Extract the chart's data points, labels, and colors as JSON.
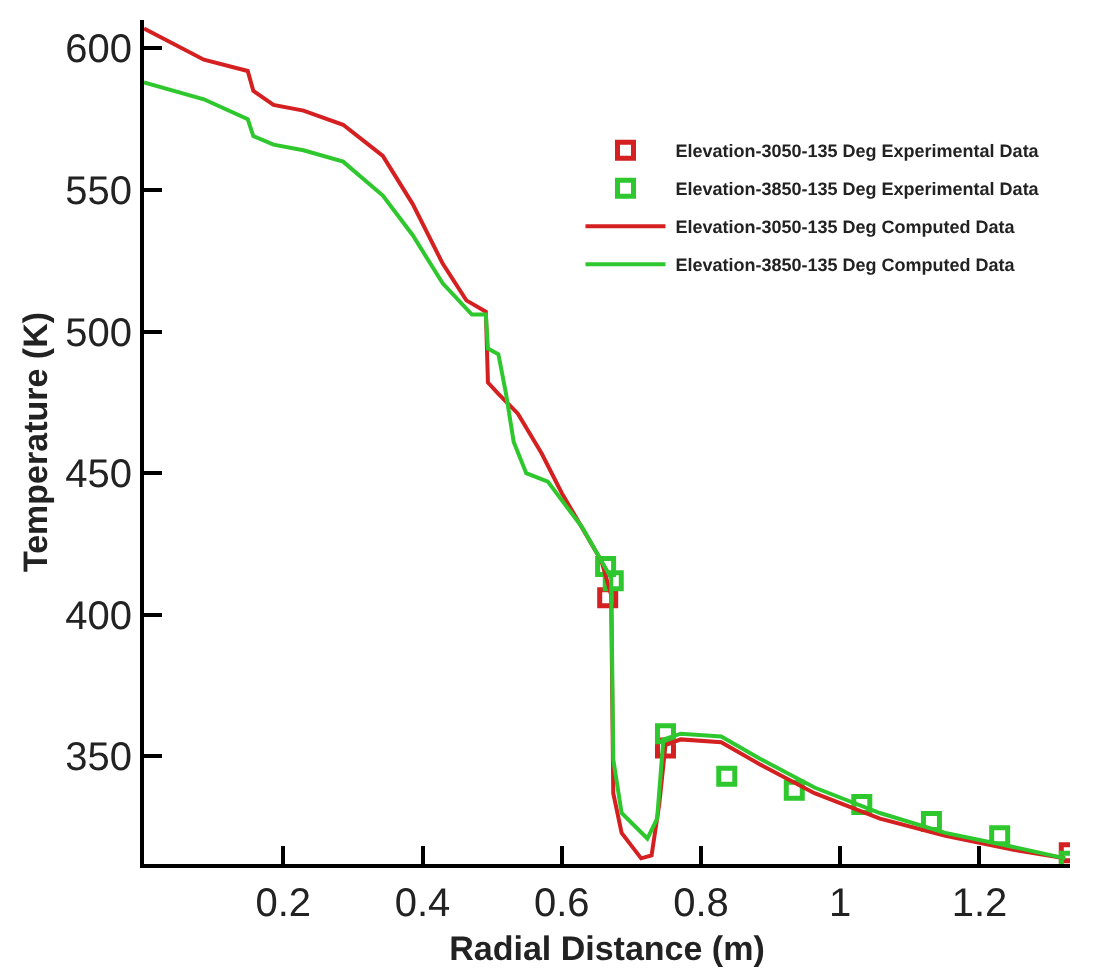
{
  "chart_data": {
    "type": "line",
    "xlabel": "Radial Distance (m)",
    "ylabel": "Temperature (K)",
    "xlim": [
      0,
      1.33
    ],
    "ylim": [
      312,
      610
    ],
    "xticks": [
      0.2,
      0.4,
      0.6,
      0.8,
      1,
      1.2
    ],
    "yticks": [
      350,
      400,
      450,
      500,
      550,
      600
    ],
    "grid": false,
    "legend": "top right",
    "line_style": "solid",
    "series": [
      {
        "name": "Elevation-3050-135 Deg Experimental Data",
        "type": "scatter",
        "marker": "square",
        "color": "#d42020",
        "x": [
          0.666,
          0.749,
          1.329
        ],
        "values": [
          406,
          353,
          316
        ]
      },
      {
        "name": "Elevation-3850-135 Deg Experimental Data",
        "type": "scatter",
        "marker": "square",
        "color": "#2ec82e",
        "x": [
          0.663,
          0.674,
          0.749,
          0.837,
          0.934,
          1.031,
          1.131,
          1.229,
          1.329
        ],
        "values": [
          417,
          412,
          358,
          343,
          338,
          333,
          327,
          322,
          313
        ]
      },
      {
        "name": "Elevation-3050-135 Deg Computed Data",
        "marker": "none",
        "color": "#d42020",
        "x": [
          0,
          0.086,
          0.149,
          0.157,
          0.186,
          0.229,
          0.286,
          0.343,
          0.386,
          0.429,
          0.463,
          0.491,
          0.494,
          0.509,
          0.537,
          0.571,
          0.6,
          0.657,
          0.671,
          0.674,
          0.686,
          0.714,
          0.729,
          0.74,
          0.749,
          0.771,
          0.829,
          0.886,
          0.963,
          1.057,
          1.151,
          1.249,
          1.323
        ],
        "values": [
          607,
          596,
          592,
          585,
          580,
          578,
          573,
          562,
          545,
          524,
          511,
          507,
          482,
          478,
          471,
          457,
          443,
          419,
          407,
          337,
          323,
          314,
          315,
          333,
          354,
          356,
          355,
          347,
          337,
          328,
          322,
          317,
          314
        ]
      },
      {
        "name": "Elevation-3850-135 Deg Computed Data",
        "marker": "none",
        "color": "#2ec82e",
        "x": [
          0,
          0.086,
          0.149,
          0.157,
          0.186,
          0.229,
          0.286,
          0.343,
          0.386,
          0.429,
          0.471,
          0.491,
          0.494,
          0.509,
          0.52,
          0.531,
          0.549,
          0.58,
          0.629,
          0.657,
          0.671,
          0.674,
          0.686,
          0.723,
          0.737,
          0.746,
          0.771,
          0.829,
          0.886,
          0.963,
          1.057,
          1.151,
          1.249,
          1.323
        ],
        "values": [
          588,
          582,
          575,
          569,
          566,
          564,
          560,
          548,
          534,
          517,
          506,
          506,
          494,
          492,
          478,
          461,
          450,
          447,
          431,
          419,
          413,
          349,
          330,
          321,
          328,
          356,
          358,
          357,
          349,
          339,
          330,
          323,
          318,
          314
        ]
      }
    ]
  }
}
